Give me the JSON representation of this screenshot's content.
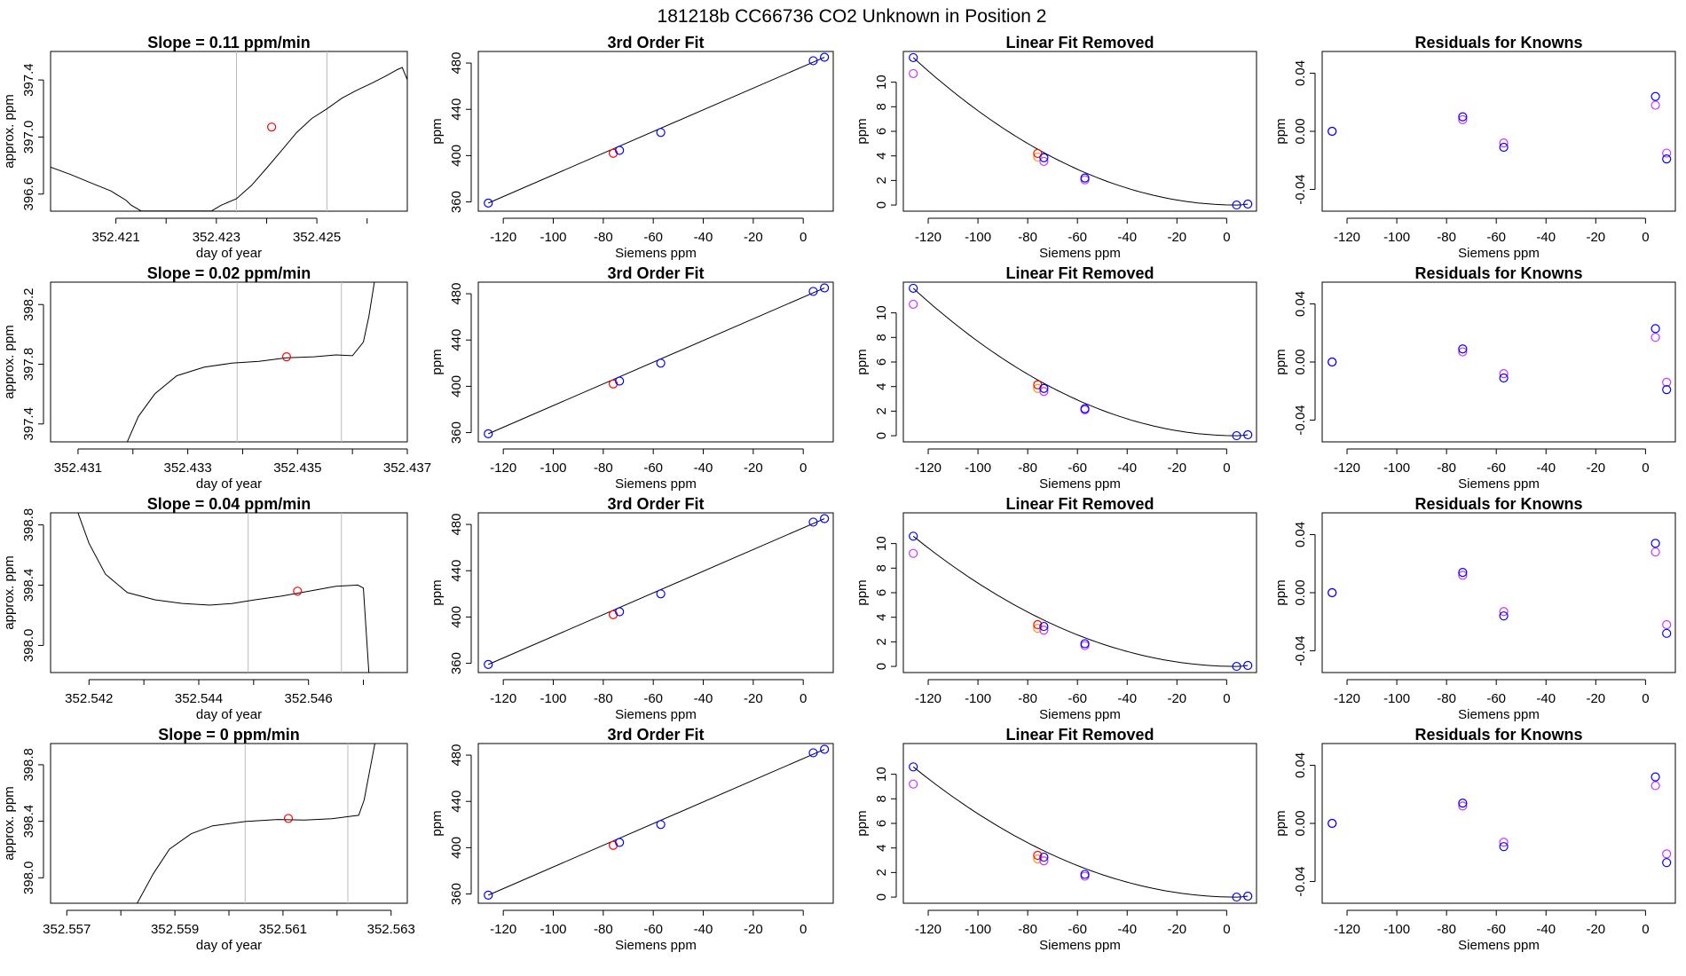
{
  "title": "181218b      CC66736    CO2 Unknown in Position  2",
  "colors": {
    "trace": "#000000",
    "marker_red": "#ff0000",
    "known_blue": "#0000ff",
    "known_magenta": "#cc33ff",
    "vline": "#bbbbbb"
  },
  "chart_data": [
    {
      "type": "line",
      "title": "Slope =  0.11  ppm/min",
      "xlabel": "day of year",
      "ylabel": "approx. ppm",
      "xlim": [
        352.4197,
        352.4268
      ],
      "ylim": [
        396.48,
        397.6
      ],
      "xticks": [
        "352.421",
        "352.423",
        "352.425"
      ],
      "yticks": [
        "396.6",
        "397.0",
        "397.4"
      ],
      "xticks_v": [
        352.421,
        352.423,
        352.425
      ],
      "yticks_v": [
        396.6,
        397.0,
        397.4
      ],
      "minor_x": [
        352.422,
        352.424,
        352.426
      ],
      "vlines": [
        352.4234,
        352.4252
      ],
      "marker": [
        352.4241,
        397.07
      ],
      "trace": [
        [
          352.4197,
          396.79
        ],
        [
          352.4201,
          396.74
        ],
        [
          352.4205,
          396.68
        ],
        [
          352.4209,
          396.62
        ],
        [
          352.4212,
          396.56
        ],
        [
          352.4213,
          396.52
        ],
        [
          352.4215,
          396.48
        ],
        [
          352.4229,
          396.48
        ],
        [
          352.4231,
          396.52
        ],
        [
          352.4234,
          396.57
        ],
        [
          352.4237,
          396.66
        ],
        [
          352.424,
          396.78
        ],
        [
          352.4243,
          396.91
        ],
        [
          352.4246,
          397.03
        ],
        [
          352.4249,
          397.13
        ],
        [
          352.4252,
          397.2
        ],
        [
          352.4255,
          397.27
        ],
        [
          352.4258,
          397.33
        ],
        [
          352.4261,
          397.38
        ],
        [
          352.4264,
          397.43
        ],
        [
          352.4266,
          397.47
        ],
        [
          352.4267,
          397.49
        ],
        [
          352.4268,
          397.4
        ],
        [
          352.4269,
          396.48
        ]
      ]
    },
    {
      "type": "line",
      "title": "Slope =  0.02  ppm/min",
      "xlabel": "day of year",
      "ylabel": "approx. ppm",
      "xlim": [
        352.4305,
        352.437
      ],
      "ylim": [
        397.28,
        398.35
      ],
      "xticks": [
        "352.431",
        "352.433",
        "352.435",
        "352.437"
      ],
      "yticks": [
        "397.4",
        "397.8",
        "398.2"
      ],
      "xticks_v": [
        352.431,
        352.433,
        352.435,
        352.437
      ],
      "yticks_v": [
        397.4,
        397.8,
        398.2
      ],
      "minor_x": [
        352.432,
        352.434,
        352.436
      ],
      "vlines": [
        352.4339,
        352.4358
      ],
      "marker": [
        352.4348,
        397.85
      ],
      "trace": [
        [
          352.4319,
          397.28
        ],
        [
          352.4321,
          397.45
        ],
        [
          352.4324,
          397.6
        ],
        [
          352.4328,
          397.72
        ],
        [
          352.4333,
          397.78
        ],
        [
          352.4338,
          397.81
        ],
        [
          352.4343,
          397.82
        ],
        [
          352.4348,
          397.84
        ],
        [
          352.4353,
          397.85
        ],
        [
          352.4357,
          397.86
        ],
        [
          352.436,
          397.86
        ],
        [
          352.4362,
          397.95
        ],
        [
          352.4363,
          398.12
        ],
        [
          352.4364,
          398.35
        ]
      ]
    },
    {
      "type": "line",
      "title": "Slope =  0.04  ppm/min",
      "xlabel": "day of year",
      "ylabel": "approx. ppm",
      "xlim": [
        352.5413,
        352.5478
      ],
      "ylim": [
        397.82,
        398.88
      ],
      "xticks": [
        "352.542",
        "352.544",
        "352.546"
      ],
      "yticks": [
        "398.0",
        "398.4",
        "398.8"
      ],
      "xticks_v": [
        352.542,
        352.544,
        352.546
      ],
      "yticks_v": [
        398.0,
        398.4,
        398.8
      ],
      "minor_x": [
        352.543,
        352.545,
        352.547
      ],
      "vlines": [
        352.5449,
        352.5466
      ],
      "marker": [
        352.5458,
        398.36
      ],
      "trace": [
        [
          352.5418,
          398.88
        ],
        [
          352.542,
          398.68
        ],
        [
          352.5423,
          398.47
        ],
        [
          352.5427,
          398.35
        ],
        [
          352.5432,
          398.3
        ],
        [
          352.5437,
          398.28
        ],
        [
          352.5442,
          398.27
        ],
        [
          352.5446,
          398.28
        ],
        [
          352.545,
          398.3
        ],
        [
          352.5455,
          398.33
        ],
        [
          352.546,
          398.36
        ],
        [
          352.5465,
          398.39
        ],
        [
          352.5469,
          398.4
        ],
        [
          352.547,
          398.38
        ],
        [
          352.5471,
          397.82
        ]
      ]
    },
    {
      "type": "line",
      "title": "Slope =  0  ppm/min",
      "xlabel": "day of year",
      "ylabel": "approx. ppm",
      "xlim": [
        352.5567,
        352.5633
      ],
      "ylim": [
        397.82,
        398.95
      ],
      "xticks": [
        "352.557",
        "352.559",
        "352.561",
        "352.563"
      ],
      "yticks": [
        "398.0",
        "398.4",
        "398.8"
      ],
      "xticks_v": [
        352.557,
        352.559,
        352.561,
        352.563
      ],
      "yticks_v": [
        398.0,
        398.4,
        398.8
      ],
      "minor_x": [
        352.558,
        352.56,
        352.562
      ],
      "vlines": [
        352.5603,
        352.5622
      ],
      "marker": [
        352.5611,
        398.42
      ],
      "trace": [
        [
          352.5583,
          397.82
        ],
        [
          352.5586,
          398.03
        ],
        [
          352.5589,
          398.2
        ],
        [
          352.5593,
          398.31
        ],
        [
          352.5597,
          398.37
        ],
        [
          352.5603,
          398.4
        ],
        [
          352.5609,
          398.41
        ],
        [
          352.5614,
          398.41
        ],
        [
          352.5619,
          398.42
        ],
        [
          352.5622,
          398.43
        ],
        [
          352.5624,
          398.44
        ],
        [
          352.5625,
          398.55
        ],
        [
          352.5626,
          398.75
        ],
        [
          352.5627,
          398.95
        ]
      ]
    }
  ],
  "fit_panels": {
    "title": "3rd Order Fit",
    "xlabel": "Siemens ppm",
    "ylabel": "ppm",
    "xlim": [
      -130,
      12
    ],
    "ylim": [
      352,
      490
    ],
    "xticks": [
      "-120",
      "-100",
      "-80",
      "-60",
      "-40",
      "-20",
      "0"
    ],
    "xticks_v": [
      -120,
      -100,
      -80,
      -60,
      -40,
      -20,
      0
    ],
    "yticks": [
      "360",
      "400",
      "440",
      "480"
    ],
    "yticks_v": [
      360,
      400,
      440,
      480
    ],
    "blue_points": [
      [
        -126,
        359
      ],
      [
        -73.5,
        404.5
      ],
      [
        -57,
        420
      ],
      [
        4,
        482
      ],
      [
        8.5,
        485
      ]
    ],
    "red_points": [
      [
        -76,
        402
      ]
    ],
    "line": [
      [
        -126,
        359
      ],
      [
        8.5,
        485
      ]
    ]
  },
  "linear_panels": {
    "title": "Linear Fit Removed",
    "xlabel": "Siemens ppm",
    "ylabel": "ppm",
    "xlim": [
      -130,
      12
    ],
    "ylim": [
      -0.5,
      12.5
    ],
    "xticks": [
      "-120",
      "-100",
      "-80",
      "-60",
      "-40",
      "-20",
      "0"
    ],
    "xticks_v": [
      -120,
      -100,
      -80,
      -60,
      -40,
      -20,
      0
    ],
    "yticks": [
      "0",
      "2",
      "4",
      "6",
      "8",
      "10"
    ],
    "yticks_v": [
      0,
      2,
      4,
      6,
      8,
      10
    ],
    "rows": [
      {
        "blue": [
          [
            -126,
            12
          ],
          [
            -73.5,
            3.85
          ],
          [
            -57,
            2.2
          ],
          [
            4,
            0
          ],
          [
            8.5,
            0.08
          ]
        ],
        "magenta": [
          [
            -126,
            10.7
          ],
          [
            -73.5,
            3.55
          ],
          [
            -57,
            2.05
          ]
        ],
        "red": [
          [
            -76,
            4.2
          ]
        ],
        "orange": [
          [
            -76,
            3.9
          ]
        ],
        "peak": 12
      },
      {
        "blue": [
          [
            -126,
            12
          ],
          [
            -73.5,
            3.85
          ],
          [
            -57,
            2.2
          ],
          [
            4,
            0
          ],
          [
            8.5,
            0.08
          ]
        ],
        "magenta": [
          [
            -126,
            10.7
          ],
          [
            -73.5,
            3.6
          ],
          [
            -57,
            2.1
          ]
        ],
        "red": [
          [
            -76,
            4.15
          ]
        ],
        "orange": [
          [
            -76,
            3.85
          ]
        ],
        "peak": 12
      },
      {
        "blue": [
          [
            -126,
            10.6
          ],
          [
            -73.5,
            3.25
          ],
          [
            -57,
            1.85
          ],
          [
            4,
            0
          ],
          [
            8.5,
            0.08
          ]
        ],
        "magenta": [
          [
            -126,
            9.2
          ],
          [
            -73.5,
            2.95
          ],
          [
            -57,
            1.7
          ]
        ],
        "red": [
          [
            -76,
            3.4
          ]
        ],
        "orange": [
          [
            -76,
            3.1
          ]
        ],
        "peak": 10.6
      },
      {
        "blue": [
          [
            -126,
            10.6
          ],
          [
            -73.5,
            3.25
          ],
          [
            -57,
            1.85
          ],
          [
            4,
            0
          ],
          [
            8.5,
            0.08
          ]
        ],
        "magenta": [
          [
            -126,
            9.2
          ],
          [
            -73.5,
            2.95
          ],
          [
            -57,
            1.7
          ]
        ],
        "red": [
          [
            -76,
            3.4
          ]
        ],
        "orange": [
          [
            -76,
            3.1
          ]
        ],
        "peak": 10.6
      }
    ]
  },
  "resid_panels": {
    "title": "Residuals for Knowns",
    "xlabel": "Siemens ppm",
    "ylabel": "ppm",
    "xlim": [
      -130,
      12
    ],
    "ylim": [
      -0.055,
      0.055
    ],
    "xticks": [
      "-120",
      "-100",
      "-80",
      "-60",
      "-40",
      "-20",
      "0"
    ],
    "xticks_v": [
      -120,
      -100,
      -80,
      -60,
      -40,
      -20,
      0
    ],
    "yticks": [
      "-0.04",
      "0.00",
      "0.04"
    ],
    "yticks_v": [
      -0.04,
      0,
      0.04
    ],
    "rows": [
      {
        "blue": [
          [
            -126,
            0
          ],
          [
            -73.5,
            0.01
          ],
          [
            -57,
            -0.011
          ],
          [
            4,
            0.024
          ],
          [
            8.5,
            -0.019
          ]
        ],
        "magenta": [
          [
            -126,
            0
          ],
          [
            -73.5,
            0.008
          ],
          [
            -57,
            -0.008
          ],
          [
            4,
            0.018
          ],
          [
            8.5,
            -0.015
          ]
        ]
      },
      {
        "blue": [
          [
            -126,
            0
          ],
          [
            -73.5,
            0.009
          ],
          [
            -57,
            -0.011
          ],
          [
            4,
            0.023
          ],
          [
            8.5,
            -0.019
          ]
        ],
        "magenta": [
          [
            -126,
            0
          ],
          [
            -73.5,
            0.007
          ],
          [
            -57,
            -0.008
          ],
          [
            4,
            0.017
          ],
          [
            8.5,
            -0.014
          ]
        ]
      },
      {
        "blue": [
          [
            -126,
            0
          ],
          [
            -73.5,
            0.014
          ],
          [
            -57,
            -0.016
          ],
          [
            4,
            0.034
          ],
          [
            8.5,
            -0.028
          ]
        ],
        "magenta": [
          [
            -126,
            0
          ],
          [
            -73.5,
            0.012
          ],
          [
            -57,
            -0.013
          ],
          [
            4,
            0.028
          ],
          [
            8.5,
            -0.022
          ]
        ]
      },
      {
        "blue": [
          [
            -126,
            0
          ],
          [
            -73.5,
            0.014
          ],
          [
            -57,
            -0.016
          ],
          [
            4,
            0.032
          ],
          [
            8.5,
            -0.027
          ]
        ],
        "magenta": [
          [
            -126,
            0
          ],
          [
            -73.5,
            0.012
          ],
          [
            -57,
            -0.013
          ],
          [
            4,
            0.026
          ],
          [
            8.5,
            -0.021
          ]
        ]
      }
    ]
  }
}
